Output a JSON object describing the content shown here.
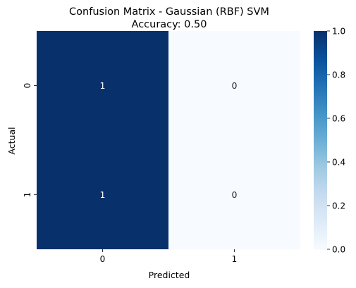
{
  "chart_data": {
    "type": "heatmap",
    "title": "Confusion Matrix - Gaussian (RBF) SVM",
    "subtitle": "Accuracy: 0.50",
    "xlabel": "Predicted",
    "ylabel": "Actual",
    "x_categories": [
      "0",
      "1"
    ],
    "y_categories": [
      "0",
      "1"
    ],
    "values": [
      [
        1,
        0
      ],
      [
        1,
        0
      ]
    ],
    "annotations": [
      [
        "1",
        "0"
      ],
      [
        "1",
        "0"
      ]
    ],
    "colormap": "Blues",
    "color_low": "#f7fbff",
    "color_high": "#08306b",
    "colorbar": {
      "range": [
        0.0,
        1.0
      ],
      "ticks": [
        0.0,
        0.2,
        0.4,
        0.6,
        0.8,
        1.0
      ],
      "tick_labels": [
        "0.0",
        "0.2",
        "0.4",
        "0.6",
        "0.8",
        "1.0"
      ]
    },
    "grid": false
  }
}
